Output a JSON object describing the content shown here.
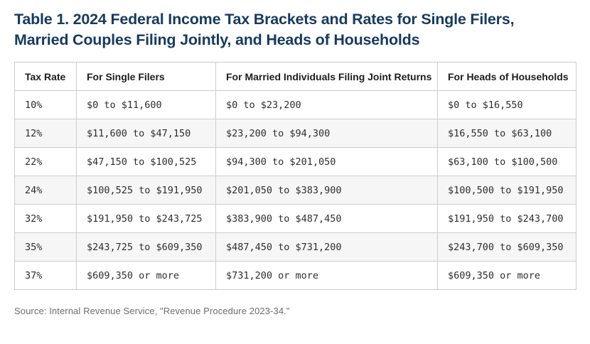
{
  "page": {
    "title": "Table 1. 2024 Federal Income Tax Brackets and Rates for Single Filers, Married Couples Filing Jointly, and Heads of Households",
    "source": "Source: Internal Revenue Service, \"Revenue Procedure 2023-34.\""
  },
  "colors": {
    "title": "#173a5e",
    "header_text": "#1d1d1d",
    "body_text": "#2e2e2e",
    "border": "#cccccc",
    "stripe": "#f6f6f6",
    "source_text": "#6e6e6e",
    "bg": "#ffffff"
  },
  "chart_data": {
    "type": "table",
    "title": "Table 1. 2024 Federal Income Tax Brackets and Rates for Single Filers, Married Couples Filing Jointly, and Heads of Households",
    "columns": [
      "Tax Rate",
      "For Single Filers",
      "For Married Individuals Filing Joint Returns",
      "For Heads of Households"
    ],
    "rows": [
      [
        "10%",
        "$0 to $11,600",
        "$0 to $23,200",
        "$0 to $16,550"
      ],
      [
        "12%",
        "$11,600 to $47,150",
        "$23,200 to $94,300",
        "$16,550 to $63,100"
      ],
      [
        "22%",
        "$47,150 to $100,525",
        "$94,300 to $201,050",
        "$63,100 to $100,500"
      ],
      [
        "24%",
        "$100,525 to $191,950",
        "$201,050 to $383,900",
        "$100,500 to $191,950"
      ],
      [
        "32%",
        "$191,950 to $243,725",
        "$383,900 to $487,450",
        "$191,950 to $243,700"
      ],
      [
        "35%",
        "$243,725 to $609,350",
        "$487,450 to $731,200",
        "$243,700 to $609,350"
      ],
      [
        "37%",
        "$609,350 or more",
        "$731,200 or more",
        "$609,350 or more"
      ]
    ]
  }
}
